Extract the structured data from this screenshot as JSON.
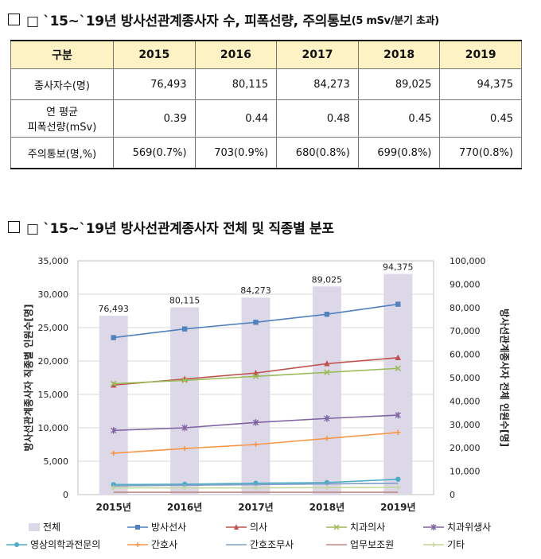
{
  "section1": {
    "title": "□ `15~`19년 방사선관계종사자 수, 피폭선량, 주의통보",
    "title_suffix": "(5 mSv/분기 초과)",
    "table": {
      "header": [
        "구분",
        "2015",
        "2016",
        "2017",
        "2018",
        "2019"
      ],
      "rows": [
        {
          "label": "종사자수(명)",
          "label2": "",
          "values": [
            "76,493",
            "80,115",
            "84,273",
            "89,025",
            "94,375"
          ]
        },
        {
          "label": "연 평균",
          "label2": "피폭선량(mSv)",
          "values": [
            "0.39",
            "0.44",
            "0.48",
            "0.45",
            "0.45"
          ]
        },
        {
          "label": "주의통보(명,%)",
          "label2": "",
          "values": [
            "569(0.7%)",
            "703(0.9%)",
            "680(0.8%)",
            "699(0.8%)",
            "770(0.8%)"
          ]
        }
      ]
    }
  },
  "section2": {
    "title": "□ `15~`19년 방사선관계종사자 전체 및 직종별 분포"
  },
  "chart_data": {
    "type": "bar",
    "categories": [
      "2015년",
      "2016년",
      "2017년",
      "2018년",
      "2019년"
    ],
    "ylabel": "방사선관계종사자 직종별 인원수[명]",
    "y2label": "방사선관계종사자 전체 인원수[명]",
    "ylim": [
      0,
      35000
    ],
    "y2lim": [
      0,
      100000
    ],
    "yticks": [
      "0",
      "5,000",
      "10,000",
      "15,000",
      "20,000",
      "25,000",
      "30,000",
      "35,000"
    ],
    "y2ticks": [
      "0",
      "10,000",
      "20,000",
      "30,000",
      "40,000",
      "50,000",
      "60,000",
      "70,000",
      "80,000",
      "90,000",
      "100,000"
    ],
    "bar_labels": [
      "76,493",
      "80,115",
      "84,273",
      "89,025",
      "94,375"
    ],
    "legend_position": "bottom",
    "grid": true,
    "series": [
      {
        "name": "전체",
        "kind": "bar",
        "axis": "right",
        "color": "#ddd8e8",
        "values": [
          76493,
          80115,
          84273,
          89025,
          94375
        ]
      },
      {
        "name": "방사선사",
        "kind": "line",
        "marker": "square",
        "color": "#4f81bd",
        "values": [
          23500,
          24800,
          25800,
          27000,
          28500
        ]
      },
      {
        "name": "의사",
        "kind": "line",
        "marker": "triangle",
        "color": "#c0504d",
        "values": [
          16400,
          17300,
          18200,
          19600,
          20500
        ]
      },
      {
        "name": "치과의사",
        "kind": "line",
        "marker": "x",
        "color": "#9bbb59",
        "values": [
          16600,
          17100,
          17700,
          18300,
          18900
        ]
      },
      {
        "name": "치과위생사",
        "kind": "line",
        "marker": "star",
        "color": "#8064a2",
        "values": [
          9600,
          10000,
          10800,
          11400,
          11900
        ]
      },
      {
        "name": "영상의학과전문의",
        "kind": "line",
        "marker": "circle",
        "color": "#4bacc6",
        "values": [
          1500,
          1550,
          1700,
          1800,
          2300
        ]
      },
      {
        "name": "간호사",
        "kind": "line",
        "marker": "plus",
        "color": "#f79646",
        "values": [
          6200,
          6900,
          7500,
          8400,
          9300
        ]
      },
      {
        "name": "간호조무사",
        "kind": "line",
        "marker": "none",
        "color": "#7f9fc4",
        "values": [
          1300,
          1400,
          1500,
          1600,
          1700
        ]
      },
      {
        "name": "업무보조원",
        "kind": "line",
        "marker": "none",
        "color": "#c08a87",
        "values": [
          350,
          350,
          350,
          350,
          350
        ]
      },
      {
        "name": "기타",
        "kind": "line",
        "marker": "plus",
        "color": "#c3d69b",
        "values": [
          1000,
          1000,
          1000,
          1050,
          1100
        ]
      }
    ]
  }
}
